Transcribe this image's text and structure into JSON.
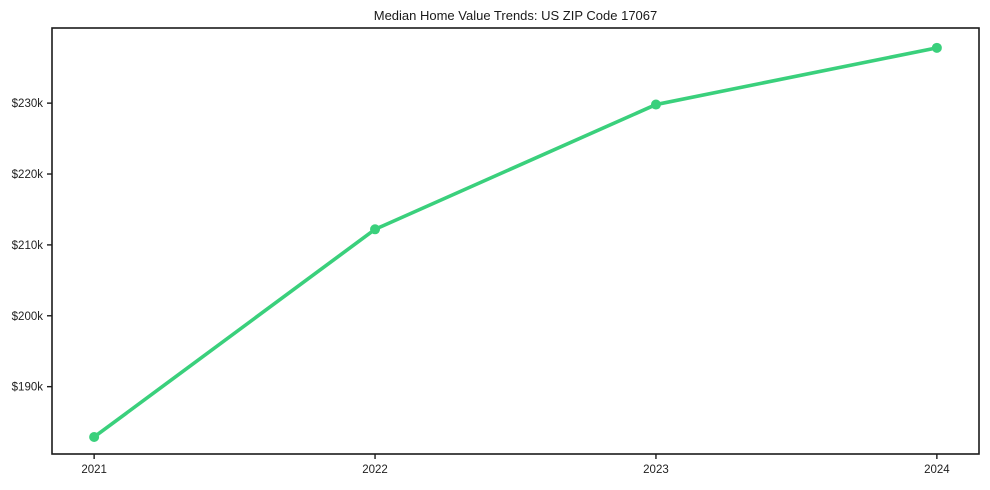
{
  "chart_data": {
    "type": "line",
    "title": "Median Home Value Trends: US ZIP Code 17067",
    "x": [
      2021,
      2022,
      2023,
      2024
    ],
    "x_tick_labels": [
      "2021",
      "2022",
      "2023",
      "2024"
    ],
    "series": [
      {
        "name": "median-home-value",
        "values": [
          182900,
          212200,
          229800,
          237800
        ],
        "color": "#3ad07c",
        "marker": "circle"
      }
    ],
    "y_ticks": [
      190000,
      200000,
      210000,
      220000,
      230000
    ],
    "y_tick_labels": [
      "$190k",
      "$200k",
      "$210k",
      "$220k",
      "$230k"
    ],
    "xlim": [
      2020.85,
      2024.15
    ],
    "ylim": [
      180500,
      240600
    ],
    "xlabel": "",
    "ylabel": "",
    "grid": false,
    "legend": "none",
    "axis_color": "#1b1b1b",
    "background": "#ffffff"
  }
}
